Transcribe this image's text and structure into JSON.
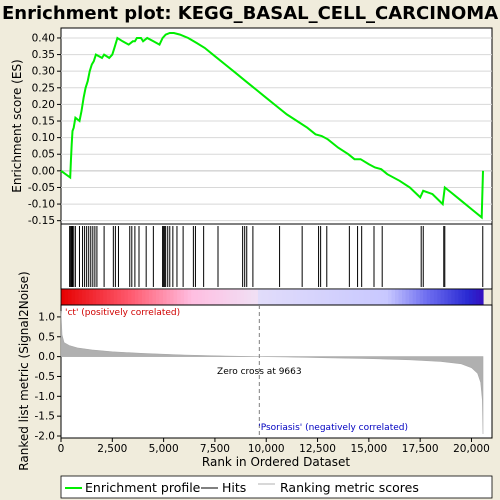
{
  "chart_data": {
    "type": "line",
    "title": "Enrichment plot: KEGG_BASAL_CELL_CARCINOMA",
    "xlabel": "Rank in Ordered Dataset",
    "xlim": [
      0,
      21000
    ],
    "x_ticks": [
      0,
      2500,
      5000,
      7500,
      10000,
      12500,
      15000,
      17500,
      20000
    ],
    "x_tick_labels": [
      "0",
      "2,500",
      "5,000",
      "7,500",
      "10,000",
      "12,500",
      "15,000",
      "17,500",
      "20,000"
    ],
    "colors": {
      "enrichment": "#00ee00",
      "hits": "#000000",
      "metric": "#b0b0b0",
      "zero_line": "#808080",
      "pos_text": "#d00000",
      "neg_text": "#0000c0",
      "background": "#f0ecdc"
    },
    "enrichment_panel": {
      "ylabel": "Enrichment score (ES)",
      "ylim": [
        -0.16,
        0.43
      ],
      "y_ticks": [
        -0.15,
        -0.1,
        -0.05,
        0.0,
        0.05,
        0.1,
        0.15,
        0.2,
        0.25,
        0.3,
        0.35,
        0.4
      ],
      "y_tick_labels": [
        "-0.15",
        "-0.10",
        "-0.05",
        "0.00",
        "0.05",
        "0.10",
        "0.15",
        "0.20",
        "0.25",
        "0.30",
        "0.35",
        "0.40"
      ],
      "series": [
        {
          "values": [
            [
              0,
              0.0
            ],
            [
              450,
              -0.02
            ],
            [
              480,
              0.03
            ],
            [
              520,
              0.08
            ],
            [
              560,
              0.12
            ],
            [
              620,
              0.13
            ],
            [
              700,
              0.16
            ],
            [
              900,
              0.15
            ],
            [
              1000,
              0.18
            ],
            [
              1100,
              0.22
            ],
            [
              1200,
              0.25
            ],
            [
              1300,
              0.27
            ],
            [
              1400,
              0.3
            ],
            [
              1500,
              0.32
            ],
            [
              1600,
              0.33
            ],
            [
              1700,
              0.35
            ],
            [
              2000,
              0.34
            ],
            [
              2100,
              0.35
            ],
            [
              2350,
              0.34
            ],
            [
              2500,
              0.35
            ],
            [
              2600,
              0.37
            ],
            [
              2750,
              0.4
            ],
            [
              3000,
              0.39
            ],
            [
              3300,
              0.38
            ],
            [
              3500,
              0.39
            ],
            [
              3600,
              0.39
            ],
            [
              3700,
              0.4
            ],
            [
              3900,
              0.4
            ],
            [
              4000,
              0.39
            ],
            [
              4200,
              0.4
            ],
            [
              4500,
              0.39
            ],
            [
              4800,
              0.38
            ],
            [
              4950,
              0.4
            ],
            [
              5100,
              0.41
            ],
            [
              5300,
              0.415
            ],
            [
              5500,
              0.415
            ],
            [
              5800,
              0.41
            ],
            [
              6200,
              0.4
            ],
            [
              6600,
              0.385
            ],
            [
              7000,
              0.37
            ],
            [
              7500,
              0.345
            ],
            [
              8000,
              0.32
            ],
            [
              8500,
              0.295
            ],
            [
              9000,
              0.27
            ],
            [
              9500,
              0.245
            ],
            [
              10000,
              0.22
            ],
            [
              10500,
              0.195
            ],
            [
              11000,
              0.17
            ],
            [
              11500,
              0.15
            ],
            [
              12000,
              0.13
            ],
            [
              12400,
              0.11
            ],
            [
              12700,
              0.105
            ],
            [
              13000,
              0.095
            ],
            [
              13500,
              0.07
            ],
            [
              14000,
              0.05
            ],
            [
              14300,
              0.035
            ],
            [
              14600,
              0.035
            ],
            [
              15000,
              0.02
            ],
            [
              15300,
              0.01
            ],
            [
              15600,
              0.005
            ],
            [
              15900,
              -0.01
            ],
            [
              16500,
              -0.03
            ],
            [
              17000,
              -0.05
            ],
            [
              17500,
              -0.08
            ],
            [
              17650,
              -0.06
            ],
            [
              18100,
              -0.07
            ],
            [
              18600,
              -0.1
            ],
            [
              18700,
              -0.05
            ],
            [
              19000,
              -0.065
            ],
            [
              19500,
              -0.09
            ],
            [
              20000,
              -0.115
            ],
            [
              20500,
              -0.14
            ],
            [
              20560,
              0.0
            ]
          ]
        }
      ]
    },
    "hits": [
      420,
      470,
      510,
      560,
      620,
      700,
      900,
      1050,
      1150,
      1250,
      1350,
      1450,
      1550,
      1650,
      1750,
      2100,
      2550,
      2650,
      2800,
      3350,
      3450,
      3600,
      3800,
      4150,
      4500,
      4950,
      5000,
      5050,
      5100,
      5200,
      5300,
      5450,
      5650,
      5950,
      6450,
      6550,
      6950,
      7650,
      8850,
      8950,
      9050,
      9350,
      10650,
      11750,
      12550,
      12650,
      12950,
      14050,
      14450,
      14650,
      15250,
      15650,
      17550,
      17650,
      18650,
      18700,
      20550
    ],
    "ranked_metric_panel": {
      "ylabel": "Ranked list metric (Signal2Noise)",
      "ylim": [
        -2.05,
        1.3
      ],
      "y_ticks": [
        -2.0,
        -1.5,
        -1.0,
        -0.5,
        0.0,
        0.5,
        1.0
      ],
      "y_tick_labels": [
        "-2.0",
        "-1.5",
        "-1.0",
        "-0.5",
        "0.0",
        "0.5",
        "1.0"
      ],
      "series": [
        {
          "values": [
            [
              0,
              1.15
            ],
            [
              50,
              0.55
            ],
            [
              150,
              0.35
            ],
            [
              400,
              0.28
            ],
            [
              800,
              0.22
            ],
            [
              1500,
              0.17
            ],
            [
              2500,
              0.12
            ],
            [
              4000,
              0.08
            ],
            [
              6000,
              0.04
            ],
            [
              8000,
              0.015
            ],
            [
              9663,
              0.0
            ],
            [
              11000,
              -0.01
            ],
            [
              13000,
              -0.03
            ],
            [
              15000,
              -0.05
            ],
            [
              17000,
              -0.08
            ],
            [
              18500,
              -0.12
            ],
            [
              19500,
              -0.18
            ],
            [
              20000,
              -0.28
            ],
            [
              20300,
              -0.42
            ],
            [
              20450,
              -0.65
            ],
            [
              20530,
              -1.1
            ],
            [
              20560,
              -1.95
            ]
          ]
        }
      ],
      "zero_cross_label": "Zero cross at 9663",
      "zero_cross_x": 9663,
      "positive_label": "'ct' (positively correlated)",
      "negative_label": "'Psoriasis' (negatively correlated)"
    },
    "legend": {
      "placement": "bottom",
      "entries": [
        {
          "label": "Enrichment profile"
        },
        {
          "label": "Hits"
        },
        {
          "label": "Ranking metric scores"
        }
      ]
    }
  }
}
